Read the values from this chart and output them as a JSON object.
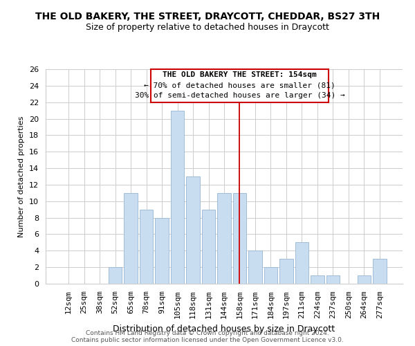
{
  "title": "THE OLD BAKERY, THE STREET, DRAYCOTT, CHEDDAR, BS27 3TH",
  "subtitle": "Size of property relative to detached houses in Draycott",
  "xlabel": "Distribution of detached houses by size in Draycott",
  "ylabel": "Number of detached properties",
  "bar_labels": [
    "12sqm",
    "25sqm",
    "38sqm",
    "52sqm",
    "65sqm",
    "78sqm",
    "91sqm",
    "105sqm",
    "118sqm",
    "131sqm",
    "144sqm",
    "158sqm",
    "171sqm",
    "184sqm",
    "197sqm",
    "211sqm",
    "224sqm",
    "237sqm",
    "250sqm",
    "264sqm",
    "277sqm"
  ],
  "bar_values": [
    0,
    0,
    0,
    2,
    11,
    9,
    8,
    21,
    13,
    9,
    11,
    11,
    4,
    2,
    3,
    5,
    1,
    1,
    0,
    1,
    3
  ],
  "bar_color": "#c8ddf0",
  "bar_edge_color": "#a0bcd8",
  "vline_index": 11,
  "annotation_text_line1": "THE OLD BAKERY THE STREET: 154sqm",
  "annotation_text_line2": "← 70% of detached houses are smaller (81)",
  "annotation_text_line3": "30% of semi-detached houses are larger (34) →",
  "annotation_box_color": "#ffffff",
  "annotation_box_edge": "#cc0000",
  "vline_color": "#cc0000",
  "footer_line1": "Contains HM Land Registry data © Crown copyright and database right 2024.",
  "footer_line2": "Contains public sector information licensed under the Open Government Licence v3.0.",
  "ylim": [
    0,
    26
  ],
  "yticks": [
    0,
    2,
    4,
    6,
    8,
    10,
    12,
    14,
    16,
    18,
    20,
    22,
    24,
    26
  ],
  "title_fontsize": 10,
  "subtitle_fontsize": 9,
  "xlabel_fontsize": 9,
  "ylabel_fontsize": 8,
  "tick_fontsize": 8,
  "annot_fontsize": 8
}
